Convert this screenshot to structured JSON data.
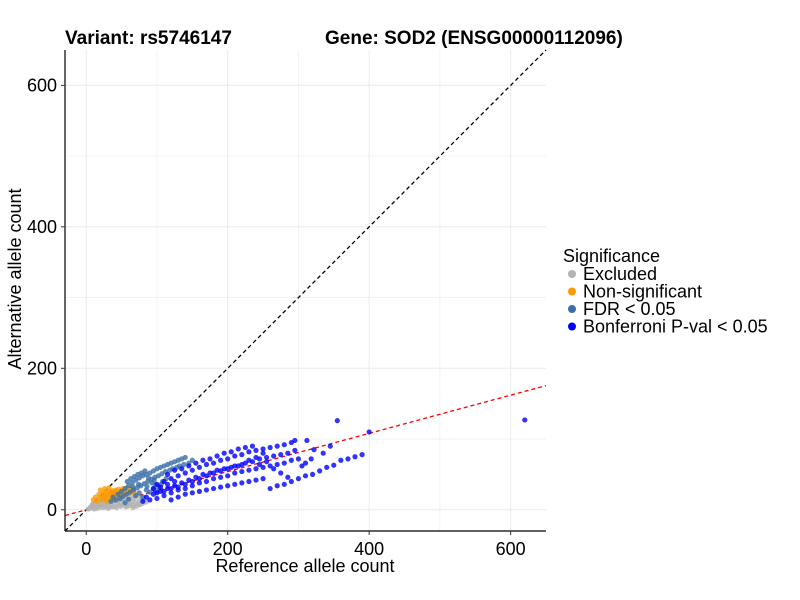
{
  "chart_data": {
    "type": "scatter",
    "title_variant": "Variant: rs5746147",
    "title_gene": "Gene: SOD2 (ENSG00000112096)",
    "xlabel": "Reference allele count",
    "ylabel": "Alternative allele count",
    "xlim": [
      -30,
      650
    ],
    "ylim": [
      -30,
      650
    ],
    "x_ticks": [
      0,
      200,
      400,
      600
    ],
    "y_ticks": [
      0,
      200,
      400,
      600
    ],
    "x_tick_labels": [
      "0",
      "200",
      "400",
      "600"
    ],
    "y_tick_labels": [
      "0",
      "200",
      "400",
      "600"
    ],
    "grid": true,
    "identity_line": {
      "slope": 1,
      "intercept": 0,
      "style": "dashed",
      "color": "#000000"
    },
    "fit_line": {
      "slope": 0.27,
      "intercept": 0,
      "style": "dashed",
      "color": "#ff0000"
    },
    "legend": {
      "title": "Significance",
      "position": "right",
      "entries": [
        {
          "label": "Excluded",
          "color": "#b3b3b3"
        },
        {
          "label": "Non-significant",
          "color": "#ff9900"
        },
        {
          "label": "FDR < 0.05",
          "color": "#3a6fa8"
        },
        {
          "label": "Bonferroni P-val < 0.05",
          "color": "#0000ff"
        }
      ]
    },
    "series": [
      {
        "name": "Excluded",
        "color": "#b3b3b3",
        "points": [
          [
            5,
            2
          ],
          [
            8,
            5
          ],
          [
            10,
            3
          ],
          [
            12,
            6
          ],
          [
            14,
            4
          ],
          [
            16,
            8
          ],
          [
            18,
            5
          ],
          [
            20,
            10
          ],
          [
            22,
            7
          ],
          [
            24,
            12
          ],
          [
            25,
            3
          ],
          [
            27,
            9
          ],
          [
            28,
            14
          ],
          [
            30,
            6
          ],
          [
            32,
            11
          ],
          [
            33,
            4
          ],
          [
            35,
            15
          ],
          [
            36,
            8
          ],
          [
            38,
            12
          ],
          [
            40,
            5
          ],
          [
            42,
            16
          ],
          [
            44,
            9
          ],
          [
            45,
            13
          ],
          [
            47,
            6
          ],
          [
            48,
            17
          ],
          [
            50,
            10
          ],
          [
            52,
            14
          ],
          [
            54,
            7
          ],
          [
            55,
            18
          ],
          [
            57,
            11
          ],
          [
            58,
            5
          ],
          [
            60,
            15
          ],
          [
            62,
            9
          ],
          [
            64,
            19
          ],
          [
            65,
            12
          ],
          [
            67,
            6
          ],
          [
            68,
            16
          ],
          [
            70,
            10
          ],
          [
            72,
            20
          ],
          [
            74,
            8
          ],
          [
            75,
            13
          ],
          [
            78,
            17
          ],
          [
            80,
            9
          ],
          [
            82,
            14
          ],
          [
            85,
            11
          ],
          [
            15,
            2
          ],
          [
            20,
            3
          ],
          [
            26,
            5
          ],
          [
            31,
            2
          ],
          [
            37,
            4
          ],
          [
            43,
            3
          ],
          [
            49,
            5
          ],
          [
            56,
            4
          ],
          [
            61,
            6
          ],
          [
            66,
            3
          ],
          [
            71,
            5
          ],
          [
            76,
            7
          ],
          [
            12,
            10
          ],
          [
            18,
            14
          ],
          [
            24,
            18
          ],
          [
            30,
            20
          ],
          [
            9,
            8
          ],
          [
            6,
            4
          ],
          [
            3,
            1
          ],
          [
            11,
            1
          ]
        ]
      },
      {
        "name": "Non-significant",
        "color": "#ff9900",
        "points": [
          [
            15,
            12
          ],
          [
            18,
            22
          ],
          [
            20,
            18
          ],
          [
            22,
            14
          ],
          [
            24,
            24
          ],
          [
            25,
            20
          ],
          [
            27,
            16
          ],
          [
            28,
            25
          ],
          [
            30,
            22
          ],
          [
            31,
            18
          ],
          [
            33,
            26
          ],
          [
            34,
            21
          ],
          [
            36,
            17
          ],
          [
            37,
            27
          ],
          [
            38,
            23
          ],
          [
            40,
            19
          ],
          [
            42,
            28
          ],
          [
            43,
            24
          ],
          [
            45,
            20
          ],
          [
            46,
            29
          ],
          [
            48,
            25
          ],
          [
            50,
            21
          ],
          [
            52,
            30
          ],
          [
            53,
            26
          ],
          [
            55,
            22
          ],
          [
            57,
            31
          ],
          [
            58,
            27
          ],
          [
            60,
            23
          ],
          [
            62,
            30
          ],
          [
            64,
            26
          ],
          [
            66,
            29
          ],
          [
            68,
            24
          ],
          [
            20,
            28
          ],
          [
            26,
            30
          ],
          [
            32,
            31
          ],
          [
            35,
            24
          ],
          [
            41,
            26
          ],
          [
            47,
            23
          ],
          [
            29,
            12
          ],
          [
            39,
            15
          ],
          [
            10,
            14
          ],
          [
            13,
            18
          ]
        ]
      },
      {
        "name": "FDR < 0.05",
        "color": "#3a6fa8",
        "points": [
          [
            35,
            12
          ],
          [
            38,
            18
          ],
          [
            42,
            14
          ],
          [
            45,
            22
          ],
          [
            48,
            16
          ],
          [
            50,
            26
          ],
          [
            52,
            19
          ],
          [
            55,
            30
          ],
          [
            57,
            22
          ],
          [
            60,
            34
          ],
          [
            62,
            25
          ],
          [
            65,
            38
          ],
          [
            67,
            28
          ],
          [
            70,
            42
          ],
          [
            72,
            31
          ],
          [
            75,
            45
          ],
          [
            77,
            34
          ],
          [
            80,
            48
          ],
          [
            82,
            37
          ],
          [
            85,
            50
          ],
          [
            87,
            40
          ],
          [
            90,
            52
          ],
          [
            92,
            43
          ],
          [
            95,
            55
          ],
          [
            97,
            46
          ],
          [
            100,
            58
          ],
          [
            102,
            48
          ],
          [
            105,
            60
          ],
          [
            107,
            51
          ],
          [
            110,
            62
          ],
          [
            112,
            54
          ],
          [
            115,
            64
          ],
          [
            118,
            56
          ],
          [
            120,
            66
          ],
          [
            122,
            58
          ],
          [
            125,
            68
          ],
          [
            128,
            60
          ],
          [
            130,
            70
          ],
          [
            132,
            62
          ],
          [
            135,
            72
          ],
          [
            138,
            64
          ],
          [
            140,
            74
          ],
          [
            145,
            66
          ],
          [
            150,
            70
          ],
          [
            58,
            40
          ],
          [
            63,
            44
          ],
          [
            68,
            47
          ],
          [
            73,
            50
          ],
          [
            78,
            52
          ],
          [
            83,
            55
          ],
          [
            88,
            45
          ],
          [
            93,
            38
          ],
          [
            98,
            35
          ],
          [
            103,
            32
          ],
          [
            108,
            40
          ],
          [
            113,
            44
          ],
          [
            70,
            20
          ],
          [
            75,
            24
          ],
          [
            80,
            18
          ],
          [
            85,
            28
          ],
          [
            90,
            25
          ],
          [
            95,
            30
          ],
          [
            100,
            27
          ],
          [
            60,
            15
          ],
          [
            55,
            10
          ],
          [
            66,
            32
          ],
          [
            74,
            36
          ],
          [
            86,
            33
          ],
          [
            96,
            42
          ],
          [
            106,
            36
          ]
        ]
      },
      {
        "name": "Bonferroni P-val < 0.05",
        "color": "#0000ff",
        "points": [
          [
            80,
            12
          ],
          [
            85,
            18
          ],
          [
            90,
            14
          ],
          [
            95,
            22
          ],
          [
            100,
            16
          ],
          [
            105,
            26
          ],
          [
            110,
            20
          ],
          [
            115,
            30
          ],
          [
            120,
            24
          ],
          [
            125,
            34
          ],
          [
            130,
            28
          ],
          [
            135,
            38
          ],
          [
            140,
            30
          ],
          [
            145,
            42
          ],
          [
            150,
            34
          ],
          [
            155,
            46
          ],
          [
            160,
            38
          ],
          [
            165,
            50
          ],
          [
            170,
            40
          ],
          [
            175,
            52
          ],
          [
            180,
            44
          ],
          [
            185,
            56
          ],
          [
            190,
            46
          ],
          [
            195,
            58
          ],
          [
            200,
            48
          ],
          [
            205,
            60
          ],
          [
            210,
            52
          ],
          [
            215,
            62
          ],
          [
            220,
            54
          ],
          [
            225,
            66
          ],
          [
            230,
            56
          ],
          [
            235,
            68
          ],
          [
            240,
            58
          ],
          [
            245,
            72
          ],
          [
            250,
            60
          ],
          [
            255,
            74
          ],
          [
            260,
            62
          ],
          [
            265,
            76
          ],
          [
            270,
            64
          ],
          [
            275,
            78
          ],
          [
            280,
            66
          ],
          [
            285,
            80
          ],
          [
            290,
            70
          ],
          [
            295,
            84
          ],
          [
            300,
            72
          ],
          [
            100,
            36
          ],
          [
            110,
            40
          ],
          [
            120,
            44
          ],
          [
            130,
            48
          ],
          [
            140,
            52
          ],
          [
            150,
            56
          ],
          [
            160,
            60
          ],
          [
            170,
            64
          ],
          [
            180,
            66
          ],
          [
            190,
            70
          ],
          [
            200,
            72
          ],
          [
            210,
            76
          ],
          [
            220,
            78
          ],
          [
            230,
            82
          ],
          [
            240,
            84
          ],
          [
            250,
            86
          ],
          [
            260,
            88
          ],
          [
            270,
            90
          ],
          [
            280,
            92
          ],
          [
            290,
            95
          ],
          [
            295,
            98
          ],
          [
            120,
            14
          ],
          [
            130,
            18
          ],
          [
            140,
            22
          ],
          [
            150,
            24
          ],
          [
            160,
            26
          ],
          [
            170,
            28
          ],
          [
            180,
            30
          ],
          [
            190,
            32
          ],
          [
            200,
            34
          ],
          [
            210,
            36
          ],
          [
            220,
            38
          ],
          [
            230,
            40
          ],
          [
            240,
            42
          ],
          [
            250,
            44
          ],
          [
            260,
            30
          ],
          [
            270,
            34
          ],
          [
            280,
            36
          ],
          [
            290,
            40
          ],
          [
            300,
            44
          ],
          [
            310,
            48
          ],
          [
            320,
            50
          ],
          [
            330,
            55
          ],
          [
            340,
            60
          ],
          [
            350,
            63
          ],
          [
            360,
            70
          ],
          [
            370,
            72
          ],
          [
            380,
            75
          ],
          [
            390,
            78
          ],
          [
            400,
            110
          ],
          [
            355,
            126
          ],
          [
            620,
            127
          ],
          [
            312,
            98
          ],
          [
            322,
            85
          ],
          [
            318,
            72
          ],
          [
            305,
            62
          ],
          [
            310,
            66
          ],
          [
            335,
            80
          ],
          [
            345,
            90
          ],
          [
            115,
            50
          ],
          [
            125,
            56
          ],
          [
            135,
            58
          ],
          [
            145,
            62
          ],
          [
            155,
            66
          ],
          [
            165,
            70
          ],
          [
            175,
            72
          ],
          [
            185,
            76
          ],
          [
            195,
            80
          ],
          [
            205,
            82
          ],
          [
            215,
            86
          ],
          [
            225,
            88
          ],
          [
            235,
            90
          ],
          [
            245,
            64
          ],
          [
            255,
            68
          ],
          [
            265,
            58
          ],
          [
            275,
            52
          ],
          [
            285,
            46
          ],
          [
            170,
            48
          ],
          [
            180,
            52
          ],
          [
            190,
            55
          ],
          [
            200,
            58
          ],
          [
            210,
            62
          ],
          [
            220,
            64
          ],
          [
            230,
            70
          ],
          [
            240,
            74
          ],
          [
            250,
            80
          ],
          [
            160,
            44
          ],
          [
            150,
            40
          ],
          [
            140,
            36
          ],
          [
            130,
            32
          ],
          [
            120,
            30
          ],
          [
            110,
            26
          ],
          [
            100,
            24
          ],
          [
            95,
            30
          ],
          [
            105,
            32
          ],
          [
            115,
            36
          ],
          [
            125,
            40
          ]
        ]
      }
    ]
  }
}
